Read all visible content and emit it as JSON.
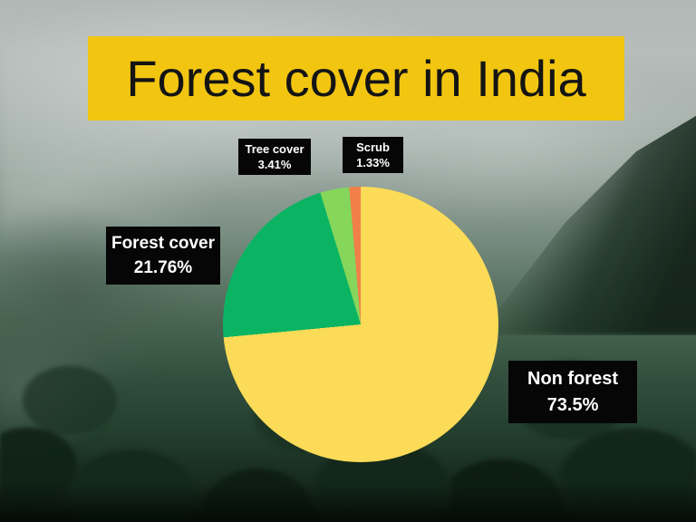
{
  "slide": {
    "title": "Forest cover in India"
  },
  "colors": {
    "title_banner": "#F2C511",
    "title_text": "#141414",
    "callout_bg": "#060606",
    "callout_text": "#FFFFFF",
    "background_fog": "#B5BBB9",
    "background_forest": "#16291D"
  },
  "chart_data": {
    "type": "pie",
    "title": "Forest cover in India",
    "start_angle_deg": 0,
    "direction": "clockwise",
    "total": 100,
    "legend_position": "callout-labels-around-pie",
    "slices": [
      {
        "label": "Non forest",
        "value": 73.5,
        "display": "73.5%",
        "color": "#FBDB57"
      },
      {
        "label": "Forest cover",
        "value": 21.76,
        "display": "21.76%",
        "color": "#0AB463"
      },
      {
        "label": "Tree cover",
        "value": 3.41,
        "display": "3.41%",
        "color": "#85D65A"
      },
      {
        "label": "Scrub",
        "value": 1.33,
        "display": "1.33%",
        "color": "#F08048"
      }
    ]
  }
}
